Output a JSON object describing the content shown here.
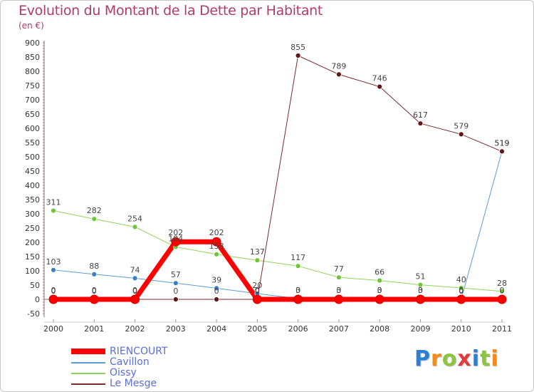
{
  "title": "Evolution du Montant de la Dette par Habitant",
  "subtitle": "(en €)",
  "brand": "Proxiti",
  "chart_data": {
    "type": "line",
    "title": "Evolution du Montant de la Dette par Habitant",
    "ylabel": "(en €)",
    "xlabel": "",
    "ylim": [
      -50,
      900
    ],
    "yticks": [
      -50,
      0,
      50,
      100,
      150,
      200,
      250,
      300,
      350,
      400,
      450,
      500,
      550,
      600,
      650,
      700,
      750,
      800,
      850,
      900
    ],
    "categories": [
      "2000",
      "2001",
      "2002",
      "2003",
      "2004",
      "2005",
      "2006",
      "2007",
      "2008",
      "2009",
      "2010",
      "2011"
    ],
    "series": [
      {
        "name": "Cavillon",
        "color": "#5b9bd5",
        "marker": "#3a7fc4",
        "width": 1,
        "values": [
          103,
          88,
          74,
          57,
          39,
          20,
          3,
          3,
          3,
          3,
          0,
          519
        ]
      },
      {
        "name": "Oissy",
        "color": "#8fd45a",
        "marker": "#6ec536",
        "width": 1,
        "values": [
          311,
          282,
          254,
          184,
          158,
          137,
          117,
          77,
          66,
          51,
          40,
          28
        ]
      },
      {
        "name": "Le Mesge",
        "color": "#7b2a2a",
        "marker": "#5e1616",
        "width": 1,
        "values": [
          0,
          0,
          0,
          0,
          0,
          0,
          855,
          789,
          746,
          617,
          579,
          519
        ]
      },
      {
        "name": "RIENCOURT",
        "color": "#ff0000",
        "marker": "#ff0000",
        "width": 7,
        "values": [
          0,
          0,
          0,
          202,
          202,
          0,
          0,
          0,
          0,
          0,
          0,
          0
        ]
      }
    ],
    "legend": [
      "RIENCOURT",
      "Cavillon",
      "Oissy",
      "Le Mesge"
    ],
    "legend_position": "bottom-left",
    "grid": false
  }
}
